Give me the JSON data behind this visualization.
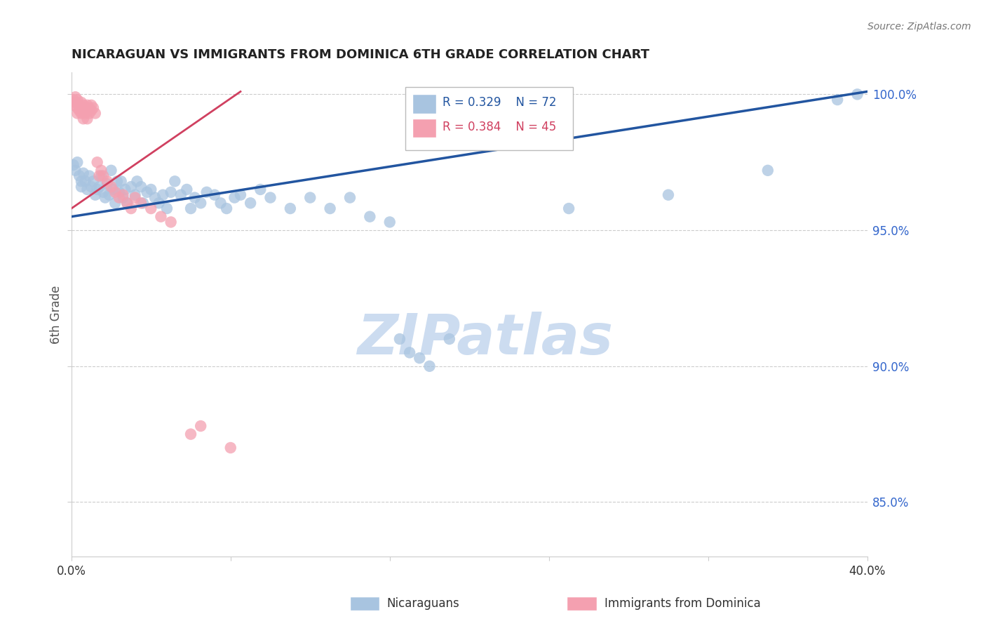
{
  "title": "NICARAGUAN VS IMMIGRANTS FROM DOMINICA 6TH GRADE CORRELATION CHART",
  "source": "Source: ZipAtlas.com",
  "ylabel": "6th Grade",
  "ylabel_right_ticks": [
    "85.0%",
    "90.0%",
    "95.0%",
    "100.0%"
  ],
  "ylabel_right_values": [
    0.85,
    0.9,
    0.95,
    1.0
  ],
  "legend_blue_label": "Nicaraguans",
  "legend_pink_label": "Immigrants from Dominica",
  "legend_R_blue": "R = 0.329",
  "legend_N_blue": "N = 72",
  "legend_R_pink": "R = 0.384",
  "legend_N_pink": "N = 45",
  "blue_color": "#a8c4e0",
  "blue_line_color": "#2255a0",
  "pink_color": "#f4a0b0",
  "pink_line_color": "#d04060",
  "watermark_color": "#ccdcf0",
  "blue_scatter": [
    [
      0.001,
      0.974
    ],
    [
      0.002,
      0.972
    ],
    [
      0.003,
      0.975
    ],
    [
      0.004,
      0.97
    ],
    [
      0.005,
      0.968
    ],
    [
      0.005,
      0.966
    ],
    [
      0.006,
      0.971
    ],
    [
      0.007,
      0.968
    ],
    [
      0.008,
      0.965
    ],
    [
      0.009,
      0.97
    ],
    [
      0.01,
      0.966
    ],
    [
      0.011,
      0.968
    ],
    [
      0.012,
      0.963
    ],
    [
      0.013,
      0.965
    ],
    [
      0.014,
      0.966
    ],
    [
      0.015,
      0.97
    ],
    [
      0.016,
      0.964
    ],
    [
      0.017,
      0.962
    ],
    [
      0.018,
      0.967
    ],
    [
      0.019,
      0.963
    ],
    [
      0.02,
      0.972
    ],
    [
      0.021,
      0.965
    ],
    [
      0.022,
      0.96
    ],
    [
      0.023,
      0.968
    ],
    [
      0.024,
      0.964
    ],
    [
      0.025,
      0.968
    ],
    [
      0.026,
      0.962
    ],
    [
      0.027,
      0.965
    ],
    [
      0.028,
      0.96
    ],
    [
      0.03,
      0.966
    ],
    [
      0.032,
      0.963
    ],
    [
      0.033,
      0.968
    ],
    [
      0.035,
      0.966
    ],
    [
      0.036,
      0.96
    ],
    [
      0.038,
      0.964
    ],
    [
      0.04,
      0.965
    ],
    [
      0.042,
      0.962
    ],
    [
      0.044,
      0.96
    ],
    [
      0.046,
      0.963
    ],
    [
      0.048,
      0.958
    ],
    [
      0.05,
      0.964
    ],
    [
      0.052,
      0.968
    ],
    [
      0.055,
      0.963
    ],
    [
      0.058,
      0.965
    ],
    [
      0.06,
      0.958
    ],
    [
      0.062,
      0.962
    ],
    [
      0.065,
      0.96
    ],
    [
      0.068,
      0.964
    ],
    [
      0.072,
      0.963
    ],
    [
      0.075,
      0.96
    ],
    [
      0.078,
      0.958
    ],
    [
      0.082,
      0.962
    ],
    [
      0.085,
      0.963
    ],
    [
      0.09,
      0.96
    ],
    [
      0.095,
      0.965
    ],
    [
      0.1,
      0.962
    ],
    [
      0.11,
      0.958
    ],
    [
      0.12,
      0.962
    ],
    [
      0.13,
      0.958
    ],
    [
      0.14,
      0.962
    ],
    [
      0.15,
      0.955
    ],
    [
      0.16,
      0.953
    ],
    [
      0.165,
      0.91
    ],
    [
      0.17,
      0.905
    ],
    [
      0.175,
      0.903
    ],
    [
      0.18,
      0.9
    ],
    [
      0.19,
      0.91
    ],
    [
      0.25,
      0.958
    ],
    [
      0.3,
      0.963
    ],
    [
      0.35,
      0.972
    ],
    [
      0.385,
      0.998
    ],
    [
      0.395,
      1.0
    ]
  ],
  "pink_scatter": [
    [
      0.001,
      0.998
    ],
    [
      0.001,
      0.996
    ],
    [
      0.002,
      0.999
    ],
    [
      0.002,
      0.997
    ],
    [
      0.003,
      0.998
    ],
    [
      0.003,
      0.995
    ],
    [
      0.003,
      0.993
    ],
    [
      0.004,
      0.996
    ],
    [
      0.004,
      0.994
    ],
    [
      0.005,
      0.997
    ],
    [
      0.005,
      0.995
    ],
    [
      0.005,
      0.993
    ],
    [
      0.006,
      0.996
    ],
    [
      0.006,
      0.994
    ],
    [
      0.006,
      0.991
    ],
    [
      0.007,
      0.995
    ],
    [
      0.007,
      0.993
    ],
    [
      0.008,
      0.996
    ],
    [
      0.008,
      0.994
    ],
    [
      0.008,
      0.991
    ],
    [
      0.009,
      0.995
    ],
    [
      0.009,
      0.993
    ],
    [
      0.01,
      0.996
    ],
    [
      0.01,
      0.994
    ],
    [
      0.011,
      0.995
    ],
    [
      0.012,
      0.993
    ],
    [
      0.013,
      0.975
    ],
    [
      0.014,
      0.97
    ],
    [
      0.015,
      0.972
    ],
    [
      0.016,
      0.97
    ],
    [
      0.018,
      0.968
    ],
    [
      0.02,
      0.966
    ],
    [
      0.022,
      0.964
    ],
    [
      0.024,
      0.962
    ],
    [
      0.026,
      0.963
    ],
    [
      0.028,
      0.96
    ],
    [
      0.03,
      0.958
    ],
    [
      0.032,
      0.962
    ],
    [
      0.035,
      0.96
    ],
    [
      0.04,
      0.958
    ],
    [
      0.045,
      0.955
    ],
    [
      0.05,
      0.953
    ],
    [
      0.06,
      0.875
    ],
    [
      0.065,
      0.878
    ],
    [
      0.08,
      0.87
    ]
  ],
  "blue_line_x": [
    0.0,
    0.4
  ],
  "blue_line_y": [
    0.955,
    1.001
  ],
  "pink_line_x": [
    0.0,
    0.085
  ],
  "pink_line_y": [
    0.958,
    1.001
  ],
  "xmin": 0.0,
  "xmax": 0.4,
  "ymin": 0.83,
  "ymax": 1.008
}
